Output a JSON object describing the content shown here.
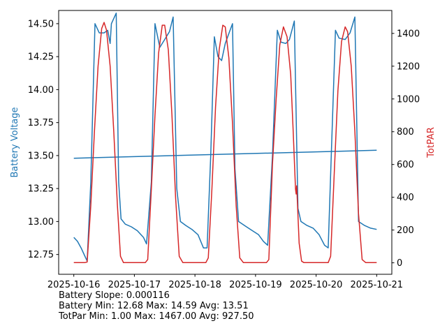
{
  "chart_data": {
    "type": "line",
    "left_axis": {
      "label": "Battery Voltage",
      "color": "#1f77b4",
      "ylim": [
        12.6,
        14.6
      ],
      "ticks": [
        "12.75",
        "13.00",
        "13.25",
        "13.50",
        "13.75",
        "14.00",
        "14.25",
        "14.50"
      ],
      "tick_values": [
        12.75,
        13.0,
        13.25,
        13.5,
        13.75,
        14.0,
        14.25,
        14.5
      ]
    },
    "right_axis": {
      "label": "TotPAR",
      "color": "#d62728",
      "ylim": [
        -70,
        1540
      ],
      "ticks": [
        "0",
        "200",
        "400",
        "600",
        "800",
        "1000",
        "1200",
        "1400"
      ],
      "tick_values": [
        0,
        200,
        400,
        600,
        800,
        1000,
        1200,
        1400
      ]
    },
    "x_axis": {
      "ticks": [
        "2025-10-16",
        "2025-10-17",
        "2025-10-18",
        "2025-10-19",
        "2025-10-20",
        "2025-10-21"
      ],
      "tick_days": [
        0,
        1,
        2,
        3,
        4,
        5
      ],
      "xlim_days": [
        -0.25,
        5.25
      ]
    },
    "series": [
      {
        "axis": "left",
        "color": "#1f77b4",
        "points": [
          [
            0.0,
            12.88
          ],
          [
            0.06,
            12.85
          ],
          [
            0.12,
            12.8
          ],
          [
            0.18,
            12.74
          ],
          [
            0.22,
            12.7
          ],
          [
            0.28,
            13.3
          ],
          [
            0.35,
            14.5
          ],
          [
            0.42,
            14.43
          ],
          [
            0.5,
            14.43
          ],
          [
            0.56,
            14.45
          ],
          [
            0.6,
            14.35
          ],
          [
            0.62,
            14.5
          ],
          [
            0.7,
            14.58
          ],
          [
            0.74,
            13.3
          ],
          [
            0.78,
            13.02
          ],
          [
            0.85,
            12.98
          ],
          [
            0.95,
            12.96
          ],
          [
            1.05,
            12.93
          ],
          [
            1.15,
            12.88
          ],
          [
            1.2,
            12.83
          ],
          [
            1.28,
            13.3
          ],
          [
            1.34,
            14.5
          ],
          [
            1.42,
            14.32
          ],
          [
            1.5,
            14.38
          ],
          [
            1.58,
            14.44
          ],
          [
            1.64,
            14.55
          ],
          [
            1.7,
            13.25
          ],
          [
            1.76,
            13.0
          ],
          [
            1.85,
            12.97
          ],
          [
            1.95,
            12.94
          ],
          [
            2.05,
            12.9
          ],
          [
            2.14,
            12.8
          ],
          [
            2.2,
            12.8
          ],
          [
            2.26,
            13.5
          ],
          [
            2.32,
            14.4
          ],
          [
            2.38,
            14.25
          ],
          [
            2.44,
            14.22
          ],
          [
            2.5,
            14.35
          ],
          [
            2.58,
            14.45
          ],
          [
            2.62,
            14.5
          ],
          [
            2.66,
            13.4
          ],
          [
            2.72,
            13.0
          ],
          [
            2.85,
            12.96
          ],
          [
            2.95,
            12.93
          ],
          [
            3.05,
            12.9
          ],
          [
            3.13,
            12.85
          ],
          [
            3.2,
            12.82
          ],
          [
            3.28,
            13.5
          ],
          [
            3.36,
            14.45
          ],
          [
            3.42,
            14.36
          ],
          [
            3.5,
            14.35
          ],
          [
            3.56,
            14.38
          ],
          [
            3.6,
            14.45
          ],
          [
            3.64,
            14.52
          ],
          [
            3.7,
            13.1
          ],
          [
            3.75,
            13.0
          ],
          [
            3.85,
            12.97
          ],
          [
            3.95,
            12.95
          ],
          [
            4.05,
            12.9
          ],
          [
            4.14,
            12.82
          ],
          [
            4.2,
            12.8
          ],
          [
            4.25,
            13.5
          ],
          [
            4.32,
            14.45
          ],
          [
            4.38,
            14.39
          ],
          [
            4.48,
            14.38
          ],
          [
            4.56,
            14.43
          ],
          [
            4.64,
            14.55
          ],
          [
            4.7,
            13.0
          ],
          [
            4.8,
            12.97
          ],
          [
            4.9,
            12.95
          ],
          [
            5.0,
            12.94
          ]
        ]
      },
      {
        "axis": "left",
        "color": "#1f77b4",
        "points": [
          [
            0.0,
            13.48
          ],
          [
            5.0,
            13.54
          ]
        ]
      },
      {
        "axis": "right",
        "color": "#d62728",
        "points": [
          [
            0.0,
            1
          ],
          [
            0.18,
            1
          ],
          [
            0.22,
            5
          ],
          [
            0.28,
            350
          ],
          [
            0.34,
            800
          ],
          [
            0.4,
            1200
          ],
          [
            0.46,
            1430
          ],
          [
            0.5,
            1467
          ],
          [
            0.54,
            1420
          ],
          [
            0.6,
            1200
          ],
          [
            0.66,
            800
          ],
          [
            0.72,
            350
          ],
          [
            0.77,
            40
          ],
          [
            0.82,
            1
          ],
          [
            1.18,
            1
          ],
          [
            1.22,
            20
          ],
          [
            1.28,
            450
          ],
          [
            1.34,
            900
          ],
          [
            1.4,
            1280
          ],
          [
            1.46,
            1450
          ],
          [
            1.5,
            1450
          ],
          [
            1.56,
            1300
          ],
          [
            1.62,
            900
          ],
          [
            1.68,
            400
          ],
          [
            1.74,
            40
          ],
          [
            1.8,
            1
          ],
          [
            2.18,
            1
          ],
          [
            2.22,
            30
          ],
          [
            2.28,
            450
          ],
          [
            2.34,
            950
          ],
          [
            2.4,
            1300
          ],
          [
            2.46,
            1450
          ],
          [
            2.5,
            1440
          ],
          [
            2.56,
            1250
          ],
          [
            2.62,
            850
          ],
          [
            2.68,
            350
          ],
          [
            2.74,
            30
          ],
          [
            2.8,
            1
          ],
          [
            3.18,
            1
          ],
          [
            3.22,
            20
          ],
          [
            3.28,
            600
          ],
          [
            3.34,
            1000
          ],
          [
            3.4,
            1330
          ],
          [
            3.46,
            1440
          ],
          [
            3.52,
            1380
          ],
          [
            3.58,
            1150
          ],
          [
            3.62,
            820
          ],
          [
            3.66,
            450
          ],
          [
            3.67,
            420
          ],
          [
            3.68,
            470
          ],
          [
            3.72,
            120
          ],
          [
            3.76,
            10
          ],
          [
            3.8,
            1
          ],
          [
            4.2,
            1
          ],
          [
            4.24,
            40
          ],
          [
            4.3,
            550
          ],
          [
            4.36,
            1050
          ],
          [
            4.42,
            1350
          ],
          [
            4.48,
            1440
          ],
          [
            4.52,
            1410
          ],
          [
            4.58,
            1200
          ],
          [
            4.64,
            800
          ],
          [
            4.7,
            300
          ],
          [
            4.76,
            20
          ],
          [
            4.82,
            1
          ],
          [
            5.0,
            1
          ]
        ]
      }
    ]
  },
  "stats": {
    "line1": "Battery Slope: 0.000116",
    "line2": "Battery Min: 12.68 Max: 14.59 Avg: 13.51",
    "line3": "TotPar Min: 1.00 Max: 1467.00 Avg: 927.50"
  }
}
